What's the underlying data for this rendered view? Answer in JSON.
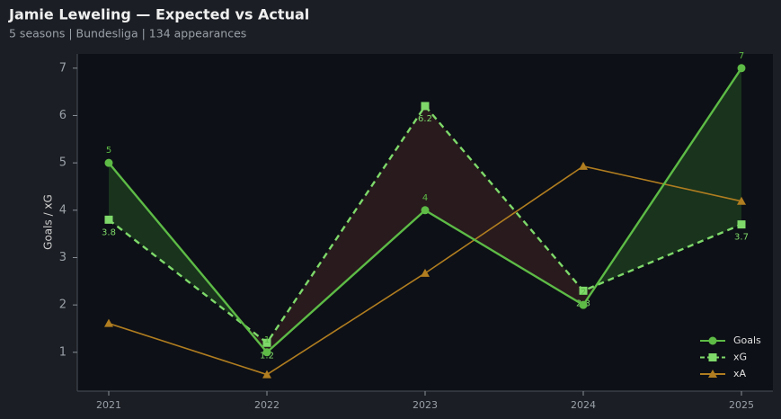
{
  "chart_data": {
    "type": "line",
    "title": "Jamie Leweling — Expected vs Actual",
    "subtitle": "5 seasons | Bundesliga | 134 appearances",
    "y_label": "Goals / xG",
    "categories": [
      "2021",
      "2022",
      "2023",
      "2024",
      "2025"
    ],
    "series": [
      {
        "name": "Goals",
        "color": "#5dbb46",
        "values": [
          5,
          1,
          4,
          2,
          7
        ],
        "marker": "circle",
        "dashed": false,
        "data_labels": "above"
      },
      {
        "name": "xG",
        "color": "#7ed96a",
        "values": [
          3.8,
          1.2,
          6.2,
          2.3,
          3.7
        ],
        "marker": "square",
        "dashed": true,
        "data_labels": "below"
      },
      {
        "name": "xA",
        "color": "#b07d20",
        "values": [
          1.61,
          0.53,
          2.67,
          4.93,
          4.19
        ],
        "marker": "triangle",
        "dashed": false
      }
    ],
    "ylim": [
      0.18,
      7.3
    ],
    "yticks": [
      1,
      2,
      3,
      4,
      5,
      6,
      7
    ],
    "fill_above": "#1c3a1e",
    "fill_below": "#2e1c1e",
    "legend": "lower right",
    "grid": false
  }
}
